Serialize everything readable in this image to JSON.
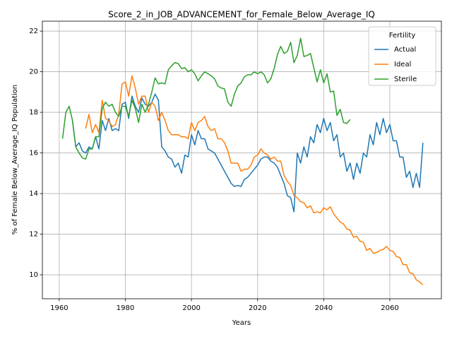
{
  "chart_data": {
    "type": "line",
    "title": "Score_2_in_JOB_ADVANCEMENT_for_Female_Below_Average_IQ",
    "xlabel": "Years",
    "ylabel": "% of Female Below_Average_IQ Population",
    "legend_title": "Fertility",
    "legend": "upper right",
    "grid": true,
    "xlim": [
      1954.9,
      2075.6
    ],
    "ylim": [
      8.82,
      22.49
    ],
    "xticks": [
      1960,
      1980,
      2000,
      2020,
      2040,
      2060
    ],
    "yticks": [
      10,
      12,
      14,
      16,
      18,
      20,
      22
    ],
    "x": [
      1961,
      1962,
      1963,
      1964,
      1965,
      1966,
      1967,
      1968,
      1969,
      1970,
      1971,
      1972,
      1973,
      1974,
      1975,
      1976,
      1977,
      1978,
      1979,
      1980,
      1981,
      1982,
      1983,
      1984,
      1985,
      1986,
      1987,
      1988,
      1989,
      1990,
      1991,
      1992,
      1993,
      1994,
      1995,
      1996,
      1997,
      1998,
      1999,
      2000,
      2001,
      2002,
      2003,
      2004,
      2005,
      2006,
      2007,
      2008,
      2009,
      2010,
      2011,
      2012,
      2013,
      2014,
      2015,
      2016,
      2017,
      2018,
      2019,
      2020,
      2021,
      2022,
      2023,
      2024,
      2025,
      2026,
      2027,
      2028,
      2029,
      2030,
      2031,
      2032,
      2033,
      2034,
      2035,
      2036,
      2037,
      2038,
      2039,
      2040,
      2041,
      2042,
      2043,
      2044,
      2045,
      2046,
      2047,
      2048,
      2049,
      2050,
      2051,
      2052,
      2053,
      2054,
      2055,
      2056,
      2057,
      2058,
      2059,
      2060,
      2061,
      2062,
      2063,
      2064,
      2065,
      2066,
      2067,
      2068,
      2069,
      2070
    ],
    "series": [
      {
        "name": "Actual",
        "color": "#1f77b4",
        "values": [
          null,
          null,
          null,
          17.6,
          16.3,
          16.5,
          16.1,
          16.0,
          16.3,
          16.2,
          16.8,
          16.2,
          17.6,
          17.1,
          17.7,
          17.1,
          17.2,
          17.1,
          18.4,
          18.5,
          17.7,
          18.8,
          18.3,
          18.0,
          18.7,
          18.4,
          18.3,
          18.5,
          18.9,
          18.6,
          16.3,
          16.1,
          15.8,
          15.7,
          15.3,
          15.5,
          15.0,
          15.9,
          15.8,
          16.9,
          16.4,
          17.1,
          16.7,
          16.7,
          16.2,
          16.1,
          16.0,
          15.7,
          15.4,
          15.1,
          14.8,
          14.5,
          14.35,
          14.4,
          14.35,
          14.7,
          14.8,
          15.0,
          15.2,
          15.4,
          15.7,
          15.8,
          15.8,
          15.6,
          15.5,
          15.3,
          14.9,
          14.5,
          13.9,
          13.8,
          13.1,
          16.0,
          15.5,
          16.3,
          15.8,
          16.8,
          16.5,
          17.4,
          17.0,
          17.7,
          17.1,
          17.5,
          16.6,
          16.9,
          15.8,
          16.0,
          15.1,
          15.5,
          14.7,
          15.5,
          15.0,
          16.0,
          15.8,
          16.9,
          16.4,
          17.5,
          16.9,
          17.7,
          17.0,
          17.4,
          16.6,
          16.6,
          15.8,
          15.8,
          14.8,
          15.1,
          14.3,
          15.0,
          14.3,
          16.5
        ]
      },
      {
        "name": "Ideal",
        "color": "#ff7f0e",
        "values": [
          null,
          null,
          null,
          null,
          null,
          null,
          null,
          17.2,
          17.9,
          17.0,
          17.4,
          17.0,
          18.6,
          17.7,
          17.6,
          17.3,
          17.4,
          17.9,
          19.4,
          19.5,
          18.8,
          19.8,
          19.2,
          18.4,
          18.8,
          18.8,
          18.0,
          18.5,
          18.3,
          17.6,
          18.0,
          17.6,
          17.1,
          16.9,
          16.9,
          16.9,
          16.8,
          16.8,
          16.7,
          17.5,
          17.1,
          17.5,
          17.6,
          17.8,
          17.3,
          17.1,
          17.2,
          16.7,
          16.7,
          16.5,
          16.1,
          15.5,
          15.5,
          15.5,
          15.1,
          15.2,
          15.2,
          15.4,
          15.8,
          15.9,
          16.2,
          16.0,
          15.9,
          15.7,
          15.8,
          15.6,
          15.6,
          14.9,
          14.6,
          14.4,
          13.9,
          13.8,
          13.6,
          13.55,
          13.3,
          13.4,
          13.05,
          13.1,
          13.05,
          13.3,
          13.2,
          13.35,
          13.0,
          12.8,
          12.6,
          12.5,
          12.25,
          12.2,
          11.85,
          11.9,
          11.65,
          11.6,
          11.2,
          11.3,
          11.05,
          11.1,
          11.2,
          11.25,
          11.4,
          11.2,
          11.15,
          10.9,
          10.85,
          10.5,
          10.5,
          10.1,
          10.05,
          9.75,
          9.65,
          9.5
        ]
      },
      {
        "name": "Sterile",
        "color": "#2ca02c",
        "values": [
          16.7,
          18.0,
          18.3,
          17.6,
          16.3,
          16.0,
          15.75,
          15.7,
          16.2,
          16.2,
          16.8,
          16.8,
          18.2,
          18.5,
          18.3,
          18.4,
          18.0,
          17.8,
          18.3,
          18.3,
          17.8,
          18.6,
          18.2,
          17.5,
          18.4,
          18.0,
          18.4,
          19.0,
          19.7,
          19.4,
          19.45,
          19.4,
          20.1,
          20.3,
          20.45,
          20.4,
          20.15,
          20.2,
          20.0,
          20.1,
          19.9,
          19.55,
          19.8,
          20.0,
          19.9,
          19.8,
          19.65,
          19.3,
          19.2,
          19.15,
          18.5,
          18.3,
          18.9,
          19.3,
          19.45,
          19.75,
          19.85,
          19.85,
          20.0,
          19.9,
          20.0,
          19.85,
          19.45,
          19.65,
          20.15,
          20.85,
          21.25,
          20.9,
          21.0,
          21.45,
          20.45,
          20.8,
          21.65,
          20.75,
          20.8,
          20.9,
          20.2,
          19.5,
          20.1,
          19.45,
          19.9,
          19.0,
          19.05,
          17.85,
          18.15,
          17.5,
          17.45,
          17.65,
          null,
          null,
          null,
          null,
          null,
          null,
          null,
          null,
          null,
          null,
          null,
          null,
          null,
          null,
          null,
          null,
          null,
          null,
          null,
          null,
          null,
          null
        ]
      }
    ]
  }
}
